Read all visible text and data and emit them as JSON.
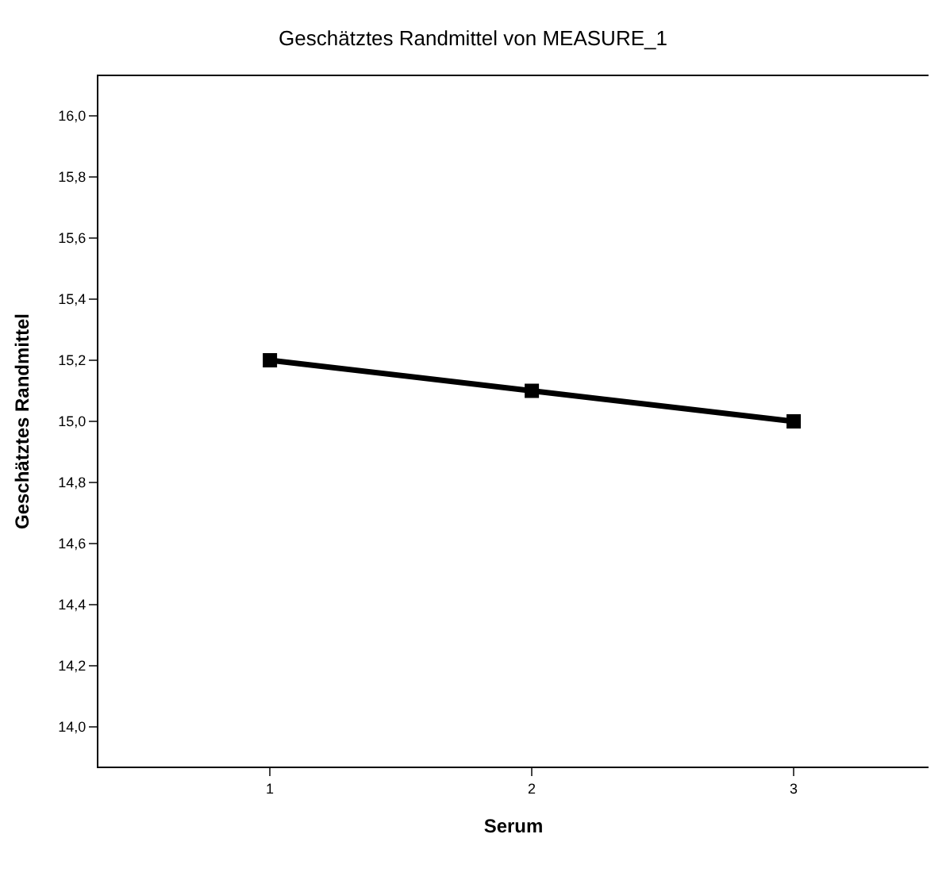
{
  "chart_data": {
    "type": "line",
    "title": "Geschätztes Randmittel von MEASURE_1",
    "xlabel": "Serum",
    "ylabel": "Geschätztes Randmittel",
    "categories": [
      "1",
      "2",
      "3"
    ],
    "series": [
      {
        "color": "#000000",
        "values": [
          15.2,
          15.1,
          15.0
        ]
      }
    ],
    "ylim": [
      13.87,
      16.13
    ],
    "yticks": [
      {
        "value": 14.0,
        "label": "14,0"
      },
      {
        "value": 14.2,
        "label": "14,2"
      },
      {
        "value": 14.4,
        "label": "14,4"
      },
      {
        "value": 14.6,
        "label": "14,6"
      },
      {
        "value": 14.8,
        "label": "14,8"
      },
      {
        "value": 15.0,
        "label": "15,0"
      },
      {
        "value": 15.2,
        "label": "15,2"
      },
      {
        "value": 15.4,
        "label": "15,4"
      },
      {
        "value": 15.6,
        "label": "15,6"
      },
      {
        "value": 15.8,
        "label": "15,8"
      },
      {
        "value": 16.0,
        "label": "16,0"
      }
    ],
    "grid": false,
    "marker": "square",
    "line_style": "solid"
  }
}
